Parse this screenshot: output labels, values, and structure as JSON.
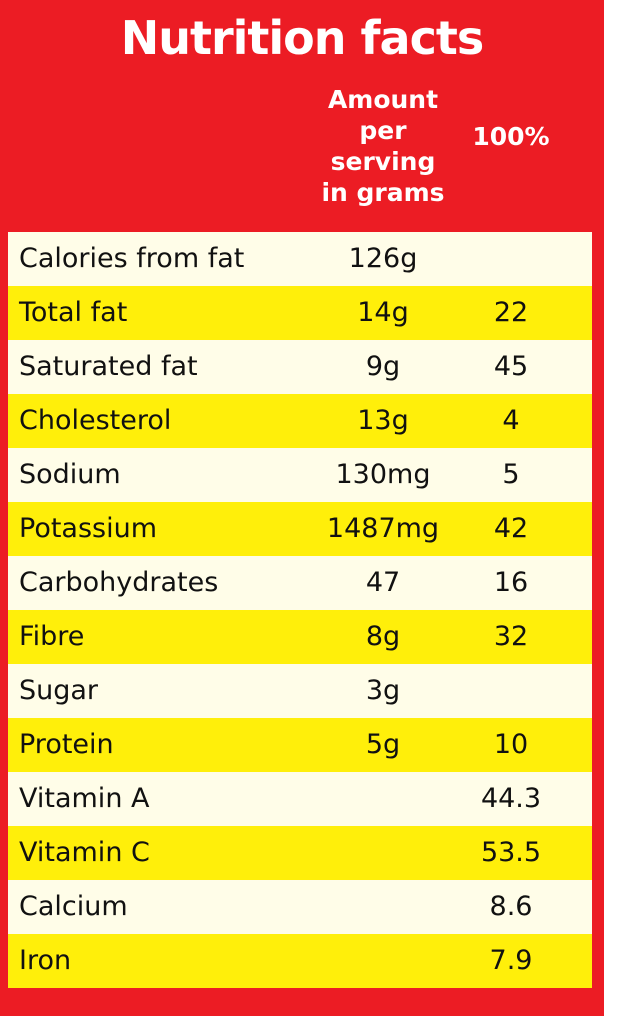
{
  "title": "Nutrition facts",
  "header": {
    "amount_lines": [
      "Amount",
      "per",
      "serving",
      "in grams"
    ],
    "percent": "100%"
  },
  "colors": {
    "panel": "#ec1c24",
    "row_light": "#fffde8",
    "row_yellow": "#ffef0a",
    "heading_text": "#ffffff",
    "body_text": "#111111"
  },
  "rows": [
    {
      "name": "Calories from fat",
      "amount": "126g",
      "percent": ""
    },
    {
      "name": "Total fat",
      "amount": "14g",
      "percent": "22"
    },
    {
      "name": "Saturated fat",
      "amount": "9g",
      "percent": "45"
    },
    {
      "name": "Cholesterol",
      "amount": "13g",
      "percent": "4"
    },
    {
      "name": "Sodium",
      "amount": "130mg",
      "percent": "5"
    },
    {
      "name": "Potassium",
      "amount": "1487mg",
      "percent": "42"
    },
    {
      "name": "Carbohydrates",
      "amount": "47",
      "percent": "16"
    },
    {
      "name": "Fibre",
      "amount": "8g",
      "percent": "32"
    },
    {
      "name": "Sugar",
      "amount": "3g",
      "percent": ""
    },
    {
      "name": "Protein",
      "amount": "5g",
      "percent": "10"
    },
    {
      "name": "Vitamin A",
      "amount": "",
      "percent": "44.3"
    },
    {
      "name": "Vitamin C",
      "amount": "",
      "percent": "53.5"
    },
    {
      "name": "Calcium",
      "amount": "",
      "percent": "8.6"
    },
    {
      "name": "Iron",
      "amount": "",
      "percent": "7.9"
    }
  ]
}
